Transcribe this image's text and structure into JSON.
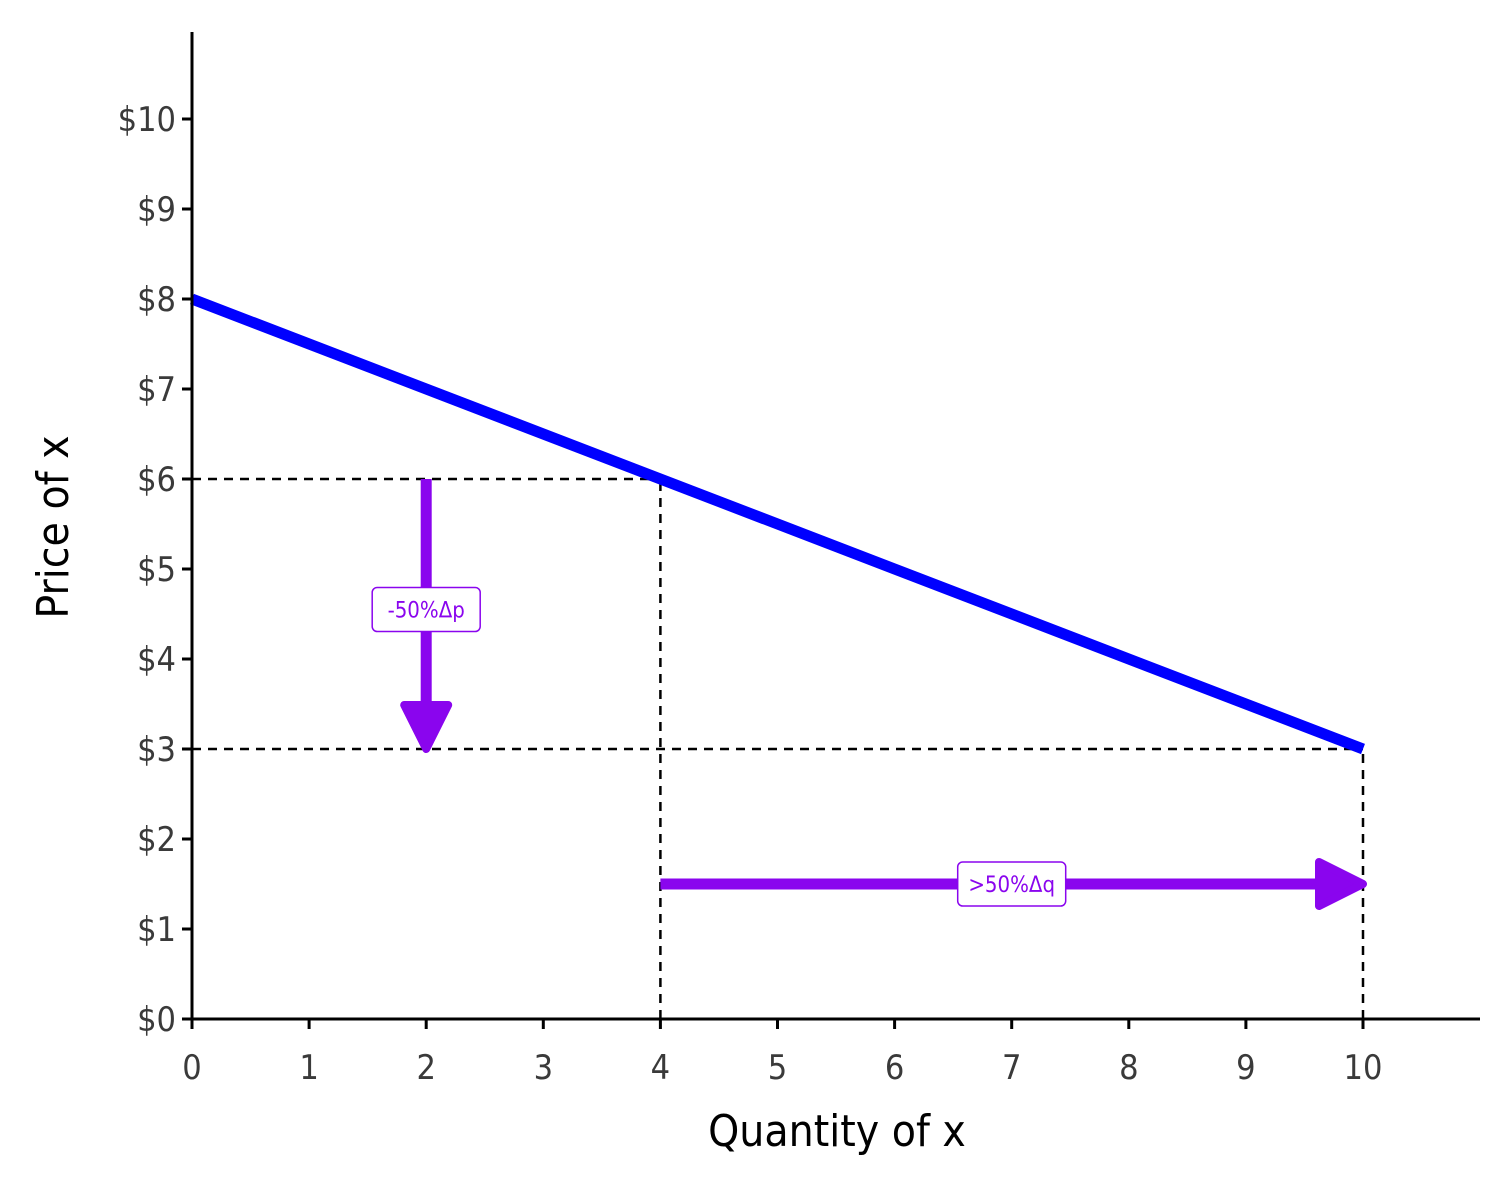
{
  "chart_data": {
    "type": "line",
    "xlabel": "Quantity of x",
    "ylabel": "Price of x",
    "xlim": [
      0,
      11
    ],
    "ylim": [
      0,
      11
    ],
    "x_ticks": [
      0,
      1,
      2,
      3,
      4,
      5,
      6,
      7,
      8,
      9,
      10
    ],
    "x_tick_labels": [
      "0",
      "1",
      "2",
      "3",
      "4",
      "5",
      "6",
      "7",
      "8",
      "9",
      "10"
    ],
    "y_ticks": [
      0,
      1,
      2,
      3,
      4,
      5,
      6,
      7,
      8,
      9,
      10
    ],
    "y_tick_labels": [
      "$0",
      "$1",
      "$2",
      "$3",
      "$4",
      "$5",
      "$6",
      "$7",
      "$8",
      "$9",
      "$10"
    ],
    "grid": false,
    "series": [
      {
        "x": [
          0,
          10
        ],
        "y": [
          8,
          3
        ],
        "color": "#0000ff"
      }
    ],
    "reference_lines": [
      {
        "x": [
          0,
          4
        ],
        "y": [
          6,
          6
        ]
      },
      {
        "x": [
          4,
          4
        ],
        "y": [
          0,
          6
        ]
      },
      {
        "x": [
          0,
          10
        ],
        "y": [
          3,
          3
        ]
      },
      {
        "x": [
          10,
          10
        ],
        "y": [
          0,
          3
        ]
      }
    ],
    "arrows": [
      {
        "from": [
          2,
          6
        ],
        "to": [
          2,
          3
        ],
        "label": "-50%Δp",
        "label_at": [
          2,
          4.55
        ],
        "color": "#8a05ee"
      },
      {
        "from": [
          4,
          1.5
        ],
        "to": [
          10,
          1.5
        ],
        "label": ">50%Δq",
        "label_at": [
          7,
          1.5
        ],
        "color": "#8a05ee"
      }
    ],
    "colors": {
      "line": "#0000ff",
      "annotation": "#8a05ee",
      "axis": "#000000"
    }
  }
}
